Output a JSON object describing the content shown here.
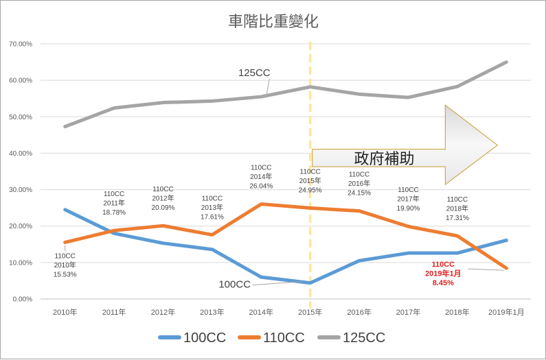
{
  "chart_data": {
    "type": "line",
    "title": "車階比重變化",
    "categories": [
      "2010年",
      "2011年",
      "2012年",
      "2013年",
      "2014年",
      "2015年",
      "2016年",
      "2017年",
      "2018年",
      "2019年1月"
    ],
    "ylim": [
      0,
      70
    ],
    "yticks": [
      "0.00%",
      "10.00%",
      "20.00%",
      "30.00%",
      "40.00%",
      "50.00%",
      "60.00%",
      "70.00%"
    ],
    "grid": true,
    "legend_position": "bottom",
    "series": [
      {
        "name": "100CC",
        "color": "#5b9bd5",
        "values": [
          24.5,
          18.0,
          15.3,
          13.6,
          6.0,
          4.4,
          10.5,
          12.6,
          12.6,
          16.1
        ]
      },
      {
        "name": "110CC",
        "color": "#ed7d31",
        "values": [
          15.53,
          18.78,
          20.09,
          17.61,
          26.04,
          24.95,
          24.15,
          19.9,
          17.31,
          8.45
        ]
      },
      {
        "name": "125CC",
        "color": "#a5a5a5",
        "values": [
          47.3,
          52.4,
          53.9,
          54.3,
          55.5,
          58.2,
          56.2,
          55.3,
          58.3,
          65.0
        ]
      }
    ],
    "data_labels": [
      {
        "cat": "2010年",
        "lines": [
          "110CC",
          "2010年",
          "15.53%"
        ]
      },
      {
        "cat": "2011年",
        "lines": [
          "110CC",
          "2011年",
          "18.78%"
        ]
      },
      {
        "cat": "2012年",
        "lines": [
          "110CC",
          "2012年",
          "20.09%"
        ]
      },
      {
        "cat": "2013年",
        "lines": [
          "110CC",
          "2013年",
          "17.61%"
        ]
      },
      {
        "cat": "2014年",
        "lines": [
          "110CC",
          "2014年",
          "26.04%"
        ]
      },
      {
        "cat": "2015年",
        "lines": [
          "110CC",
          "2015年",
          "24.95%"
        ]
      },
      {
        "cat": "2016年",
        "lines": [
          "110CC",
          "2016年",
          "24.15%"
        ]
      },
      {
        "cat": "2017年",
        "lines": [
          "110CC",
          "2017年",
          "19.90%"
        ]
      },
      {
        "cat": "2018年",
        "lines": [
          "110CC",
          "2018年",
          "17.31%"
        ]
      },
      {
        "cat": "2019年1月",
        "lines": [
          "110CC",
          "2019年1月",
          "8.45%"
        ],
        "highlight_color": "#e02020"
      }
    ],
    "series_labels": [
      {
        "series": "125CC",
        "text": "125CC"
      },
      {
        "series": "100CC",
        "text": "100CC"
      }
    ],
    "annotation": {
      "text": "政府補助",
      "start_category": "2015年",
      "marker_line_color": "#ffe699"
    }
  }
}
